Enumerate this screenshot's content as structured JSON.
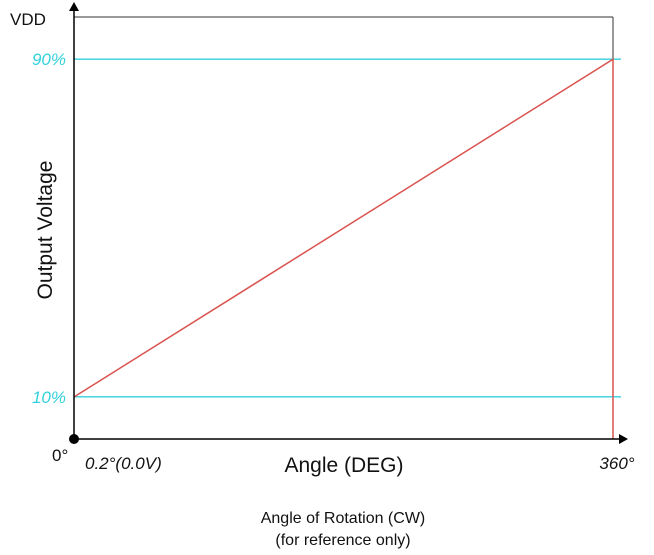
{
  "chart_data": {
    "type": "line",
    "x_axis": {
      "label": "Angle (DEG)",
      "range": [
        0,
        360
      ],
      "origin_label": "0°",
      "tick_labels": [
        {
          "value": 0.2,
          "label": "0.2°(0.0V)"
        },
        {
          "value": 360,
          "label": "360°"
        }
      ]
    },
    "y_axis": {
      "label": "Output Voltage",
      "top_label": "VDD",
      "range": [
        0,
        100
      ],
      "unit": "%"
    },
    "reference_lines": [
      {
        "value": 90,
        "label": "90%"
      },
      {
        "value": 10,
        "label": "10%"
      }
    ],
    "series": [
      {
        "points": [
          {
            "x": 0.2,
            "y": 10
          },
          {
            "x": 360,
            "y": 90
          },
          {
            "x": 360,
            "y": 0
          }
        ]
      }
    ],
    "caption": [
      "Angle of Rotation (CW)",
      "(for reference only)"
    ],
    "colors": {
      "series": "#d9534f",
      "reference": "#33d1dc",
      "axis": "#000000"
    }
  }
}
